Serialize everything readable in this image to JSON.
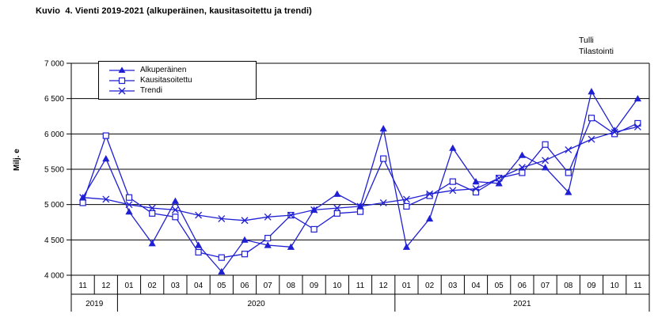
{
  "chart": {
    "title": "Kuvio  4. Vienti 2019-2021 (alkuperäinen, kausitasoitettu ja trendi)",
    "watermark_line1": "Tulli",
    "watermark_line2": "Tilastointi",
    "ylabel": "Milj. e",
    "series_color": "#1f1fd4",
    "axis_color": "#000000"
  },
  "chart_data": {
    "type": "line",
    "title": "Kuvio 4. Vienti 2019-2021 (alkuperäinen, kausitasoitettu ja trendi)",
    "xlabel": "",
    "ylabel": "Milj. e",
    "ylim": [
      4000,
      7000
    ],
    "ytick_step": 500,
    "ytick_labels": [
      "7 000",
      "6 500",
      "6 000",
      "5 500",
      "5 000",
      "4 500",
      "4 000"
    ],
    "grid": true,
    "legend_position": "top-left",
    "categories": [
      "11",
      "12",
      "01",
      "02",
      "03",
      "04",
      "05",
      "06",
      "07",
      "08",
      "09",
      "10",
      "11",
      "12",
      "01",
      "02",
      "03",
      "04",
      "05",
      "06",
      "07",
      "08",
      "09",
      "10",
      "11"
    ],
    "year_groups": [
      {
        "label": "2019",
        "months": 2
      },
      {
        "label": "2020",
        "months": 12
      },
      {
        "label": "2021",
        "months": 11
      }
    ],
    "series": [
      {
        "name": "Alkuperäinen",
        "marker": "triangle-filled",
        "values": [
          5100,
          5650,
          4900,
          4450,
          5050,
          4425,
          4050,
          4500,
          4425,
          4400,
          4925,
          5150,
          4975,
          6075,
          4400,
          4800,
          5800,
          5325,
          5300,
          5700,
          5525,
          5175,
          6600,
          6050,
          6500
        ]
      },
      {
        "name": "Kausitasoitettu",
        "marker": "square-open",
        "values": [
          5025,
          5975,
          5100,
          4875,
          4825,
          4325,
          4250,
          4300,
          4525,
          4850,
          4650,
          4875,
          4900,
          5650,
          4975,
          5125,
          5325,
          5175,
          5375,
          5450,
          5850,
          5450,
          6225,
          6000,
          6150
        ]
      },
      {
        "name": "Trendi",
        "marker": "x-cross",
        "values": [
          5100,
          5075,
          5000,
          4950,
          4925,
          4850,
          4800,
          4775,
          4825,
          4850,
          4925,
          4950,
          4975,
          5025,
          5075,
          5150,
          5200,
          5225,
          5375,
          5525,
          5625,
          5775,
          5925,
          6025,
          6100
        ]
      }
    ]
  }
}
